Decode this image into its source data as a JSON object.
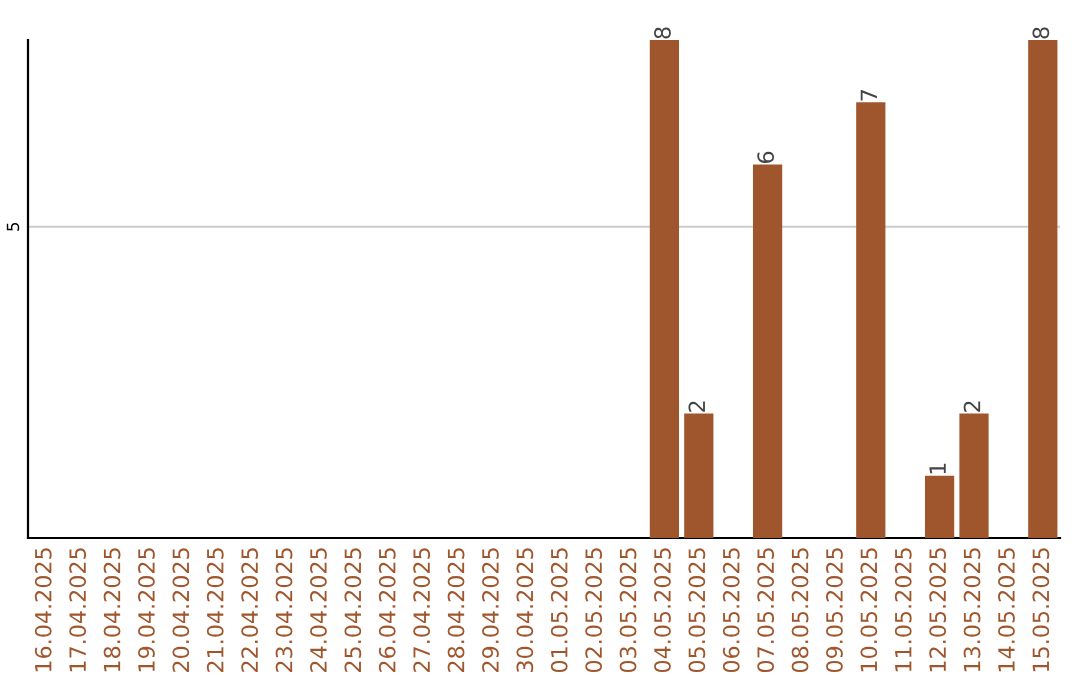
{
  "chart_data": {
    "type": "bar",
    "ylim": [
      0,
      8
    ],
    "categories": [
      "16.04.2025",
      "17.04.2025",
      "18.04.2025",
      "19.04.2025",
      "20.04.2025",
      "21.04.2025",
      "22.04.2025",
      "23.04.2025",
      "24.04.2025",
      "25.04.2025",
      "26.04.2025",
      "27.04.2025",
      "28.04.2025",
      "29.04.2025",
      "30.04.2025",
      "01.05.2025",
      "02.05.2025",
      "03.05.2025",
      "04.05.2025",
      "05.05.2025",
      "06.05.2025",
      "07.05.2025",
      "08.05.2025",
      "09.05.2025",
      "10.05.2025",
      "11.05.2025",
      "12.05.2025",
      "13.05.2025",
      "14.05.2025",
      "15.05.2025"
    ],
    "values": [
      null,
      null,
      null,
      null,
      null,
      null,
      null,
      null,
      null,
      null,
      null,
      null,
      null,
      null,
      null,
      null,
      null,
      null,
      8,
      2,
      null,
      6,
      null,
      null,
      7,
      null,
      1,
      2,
      null,
      8
    ],
    "data_labels": true,
    "yticks": [
      5
    ],
    "grid": "y",
    "legend": false,
    "color": "#a0562c"
  }
}
